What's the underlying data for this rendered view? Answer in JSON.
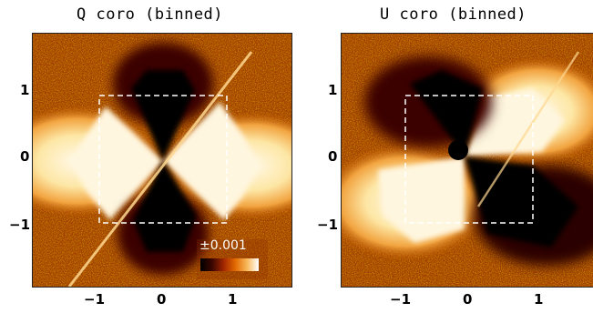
{
  "panels": [
    {
      "title": "Q coro (binned)"
    },
    {
      "title": "U coro (binned)"
    }
  ],
  "y_ticks": [
    "1",
    "0",
    "−1"
  ],
  "x_ticks": [
    "−1",
    "0",
    "1"
  ],
  "colorbar": {
    "label": "±0.001"
  },
  "colors": {
    "background": "#b64a00",
    "bright": "#fff6df",
    "dark": "#000000",
    "box": "#ffffff"
  }
}
